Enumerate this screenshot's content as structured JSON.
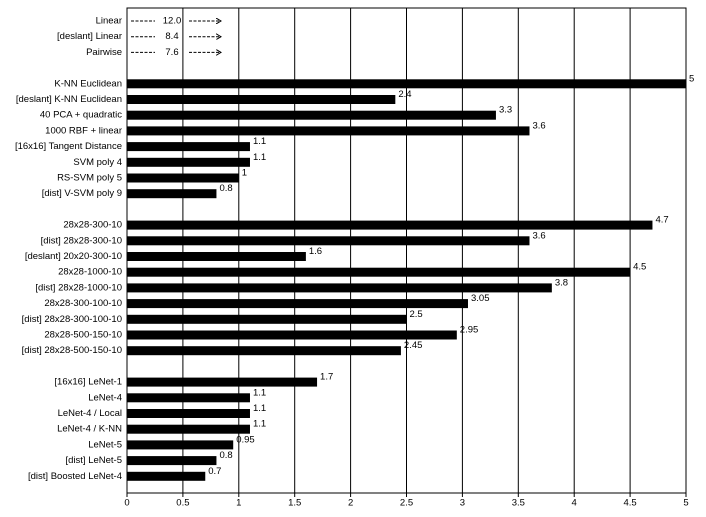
{
  "chart_data": {
    "type": "bar",
    "orientation": "horizontal",
    "categories": [
      "Linear",
      "[deslant] Linear",
      "Pairwise",
      null,
      "K-NN Euclidean",
      "[deslant] K-NN Euclidean",
      "40 PCA + quadratic",
      "1000 RBF + linear",
      "[16x16] Tangent Distance",
      "SVM poly 4",
      "RS-SVM poly 5",
      "[dist] V-SVM poly 9",
      null,
      "28x28-300-10",
      "[dist] 28x28-300-10",
      "[deslant] 20x20-300-10",
      "28x28-1000-10",
      "[dist] 28x28-1000-10",
      "28x28-300-100-10",
      "[dist] 28x28-300-100-10",
      "28x28-500-150-10",
      "[dist] 28x28-500-150-10",
      null,
      "[16x16] LeNet-1",
      "LeNet-4",
      "LeNet-4 / Local",
      "LeNet-4 / K-NN",
      "LeNet-5",
      "[dist] LeNet-5",
      "[dist] Boosted LeNet-4"
    ],
    "values": [
      12,
      8.4,
      7.6,
      null,
      5,
      2.4,
      3.3,
      3.6,
      1.1,
      1.1,
      1,
      0.8,
      null,
      4.7,
      3.6,
      1.6,
      4.5,
      3.8,
      3.05,
      2.5,
      2.95,
      2.45,
      null,
      1.7,
      1.1,
      1.1,
      1.1,
      0.95,
      0.8,
      0.7
    ],
    "value_labels": [
      "12.0",
      "8.4",
      "7.6",
      null,
      "5",
      "2.4",
      "3.3",
      "3.6",
      "1.1",
      "1.1",
      "1",
      "0.8",
      null,
      "4.7",
      "3.6",
      "1.6",
      "4.5",
      "3.8",
      "3.05",
      "2.5",
      "2.95",
      "2.45",
      null,
      "1.7",
      "1.1",
      "1.1",
      "1.1",
      "0.95",
      "0.8",
      "0.7"
    ],
    "color": "#000000",
    "xlim": [
      0,
      5
    ],
    "xticks": [
      0,
      0.5,
      1,
      1.5,
      2,
      2.5,
      3,
      3.5,
      4,
      4.5,
      5
    ],
    "grid": true
  }
}
